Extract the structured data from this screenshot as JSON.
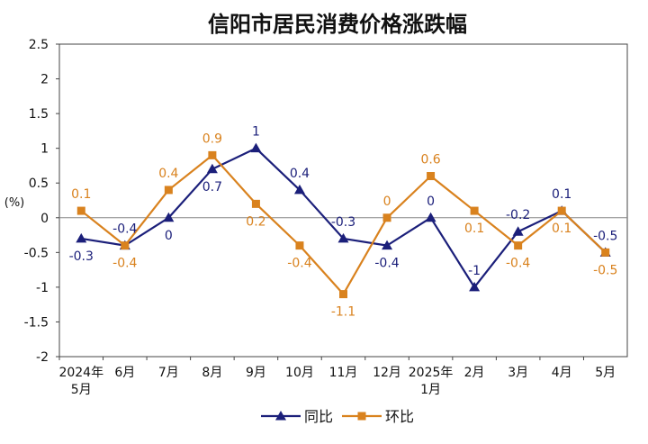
{
  "chart_data": {
    "type": "line",
    "title": "信阳市居民消费价格涨跌幅",
    "ylabel": "(%)",
    "xlabel": "",
    "ylim": [
      -2,
      2.5
    ],
    "yticks": [
      "2.5",
      "2",
      "1.5",
      "1",
      "0.5",
      "0",
      "-0.5",
      "-1",
      "-1.5",
      "-2"
    ],
    "categories": [
      [
        "2024年",
        "5月"
      ],
      [
        "6月"
      ],
      [
        "7月"
      ],
      [
        "8月"
      ],
      [
        "9月"
      ],
      [
        "10月"
      ],
      [
        "11月"
      ],
      [
        "12月"
      ],
      [
        "2025年",
        "1月"
      ],
      [
        "2月"
      ],
      [
        "3月"
      ],
      [
        "4月"
      ],
      [
        "5月"
      ]
    ],
    "series": [
      {
        "name": "同比",
        "color": "#1b1f7a",
        "marker": "triangle",
        "values": [
          -0.3,
          -0.4,
          0,
          0.7,
          1,
          0.4,
          -0.3,
          -0.4,
          0,
          -1,
          -0.2,
          0.1,
          -0.5
        ],
        "labels": [
          "-0.3",
          "-0.4",
          "0",
          "0.7",
          "1",
          "0.4",
          "-0.3",
          "-0.4",
          "0",
          "-1",
          "-0.2",
          "0.1",
          "-0.5"
        ]
      },
      {
        "name": "环比",
        "color": "#d9821e",
        "marker": "square",
        "values": [
          0.1,
          -0.4,
          0.4,
          0.9,
          0.2,
          -0.4,
          -1.1,
          0,
          0.6,
          0.1,
          -0.4,
          0.1,
          -0.5
        ],
        "labels": [
          "0.1",
          "-0.4",
          "0.4",
          "0.9",
          "0.2",
          "-0.4",
          "-1.1",
          "0",
          "0.6",
          "0.1",
          "-0.4",
          "0.1",
          "-0.5"
        ]
      }
    ],
    "grid": false,
    "legend": "bottom-center"
  }
}
